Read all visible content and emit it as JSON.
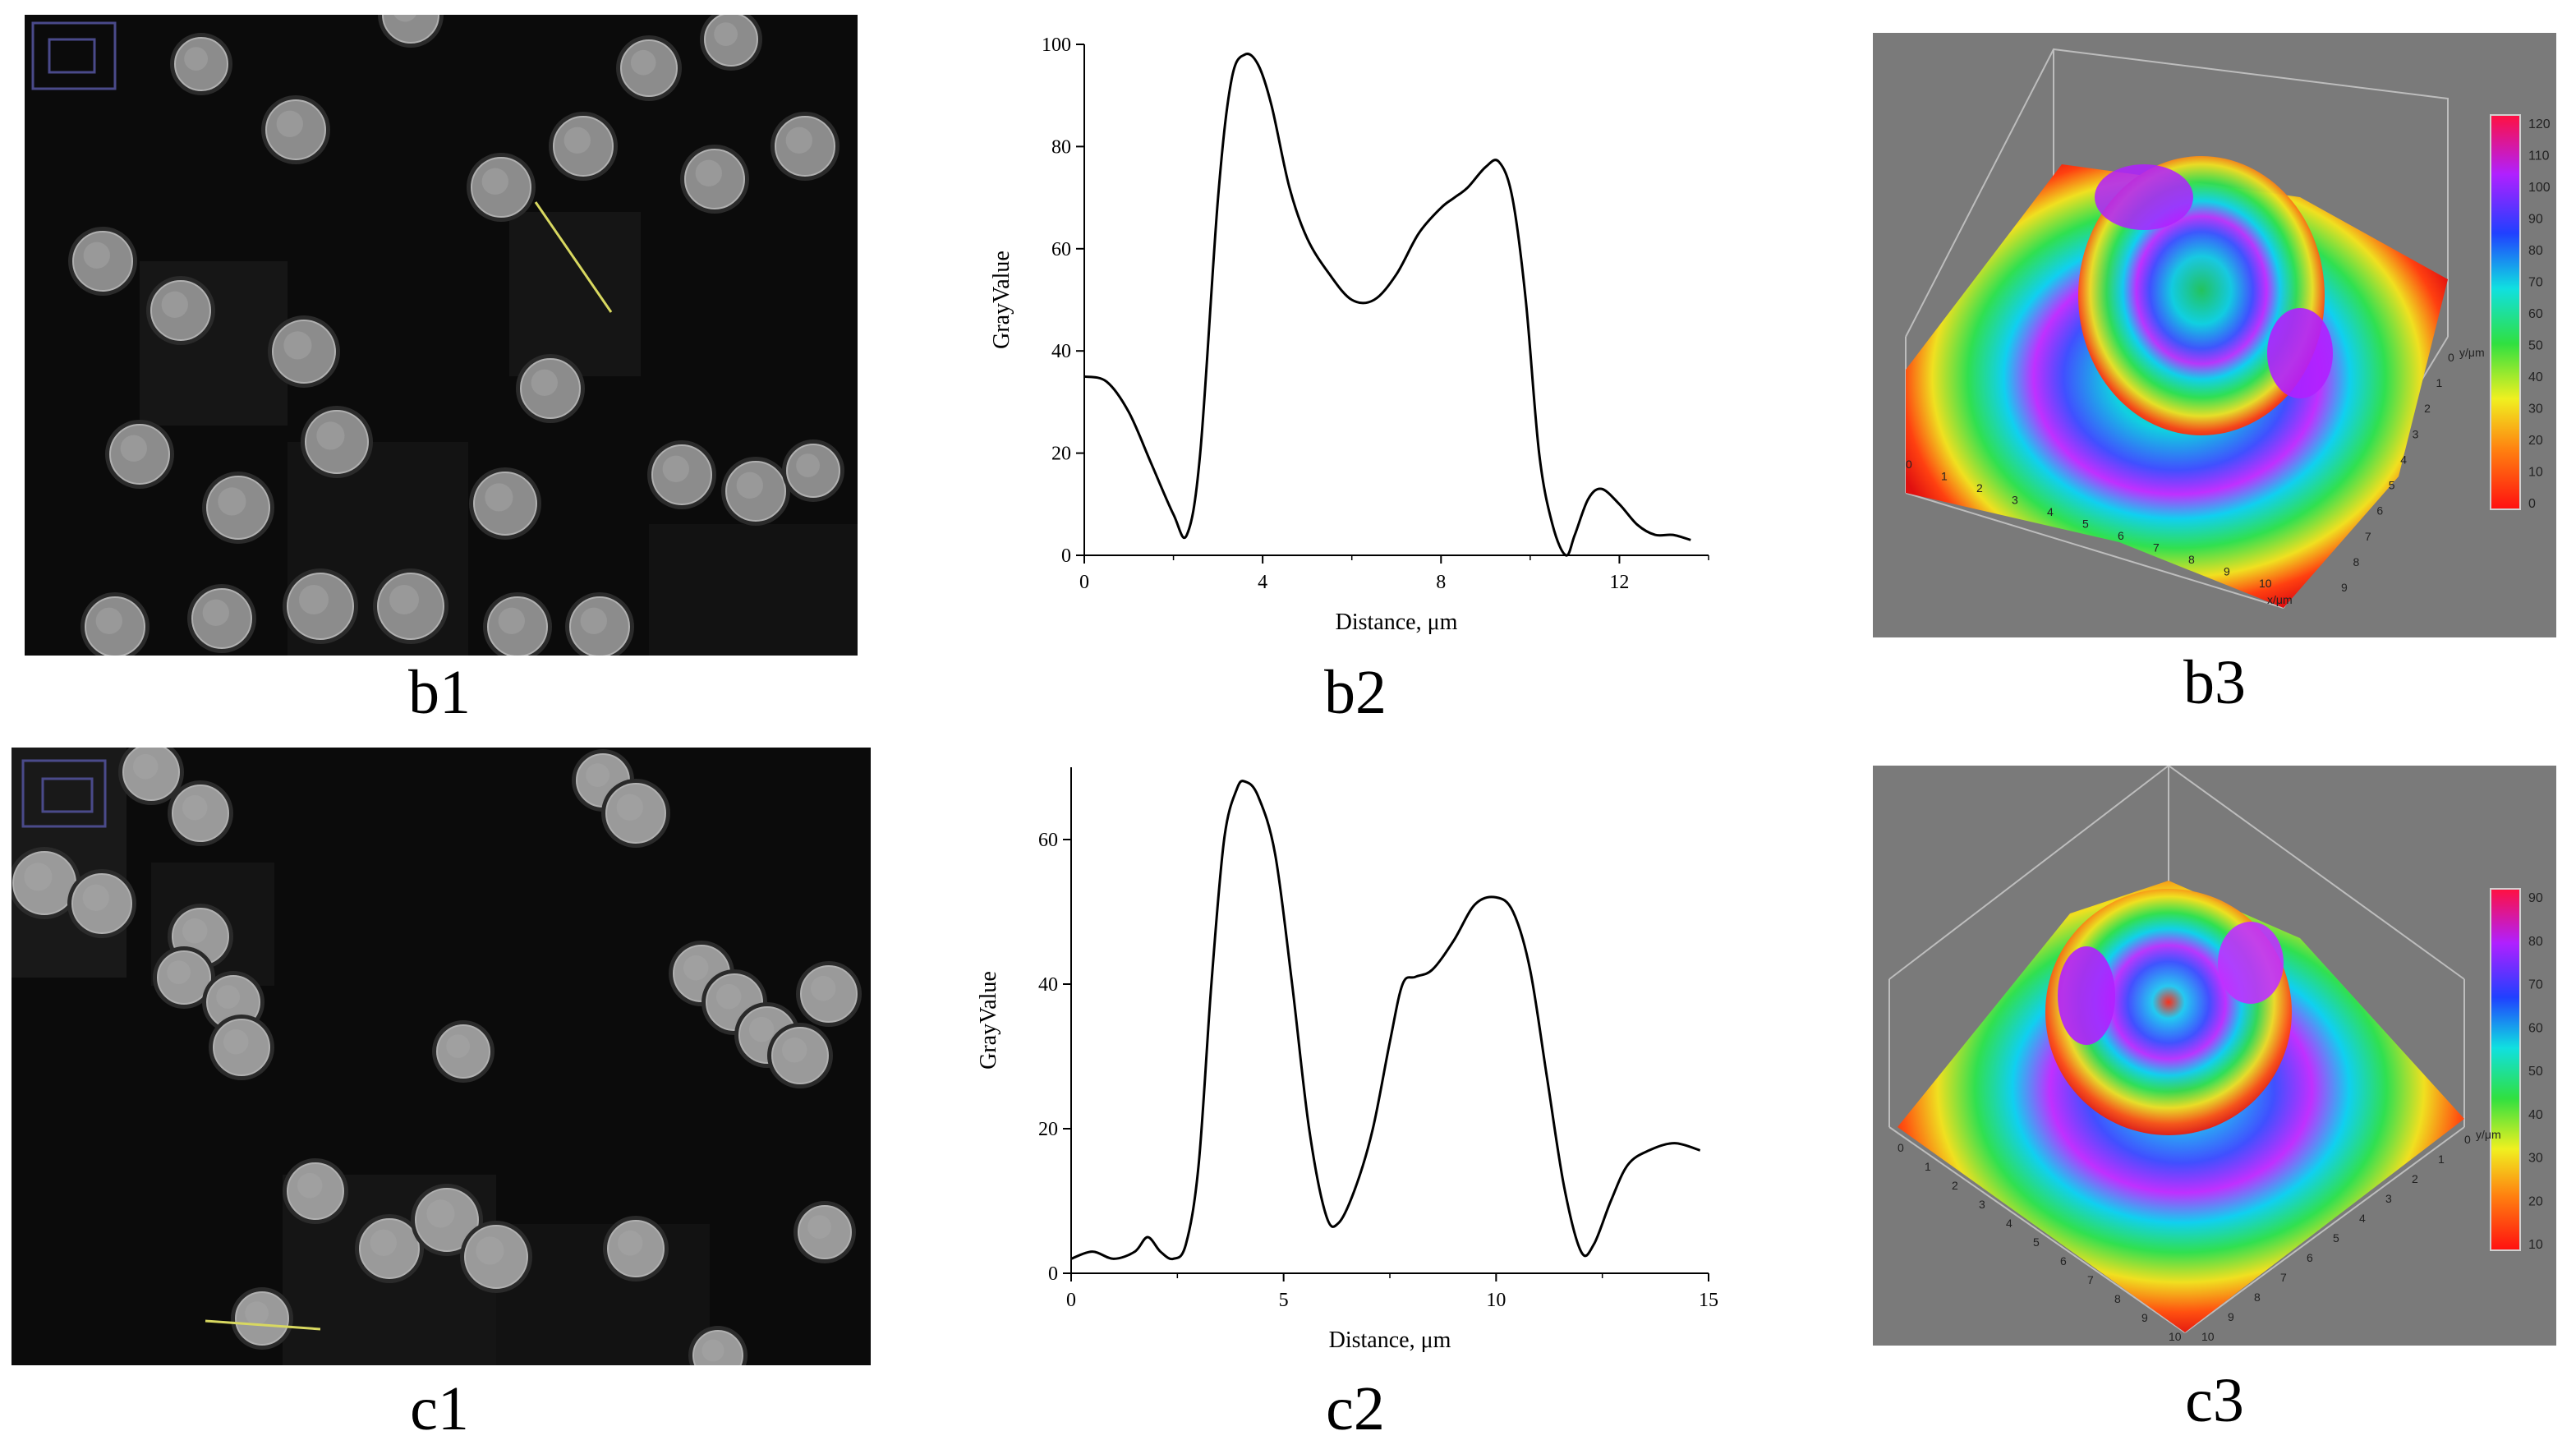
{
  "captions": {
    "b1": "b1",
    "b2": "b2",
    "b3": "b3",
    "c1": "c1",
    "c2": "c2",
    "c3": "c3"
  },
  "colors": {
    "micrograph_bg": "#0a0a0a",
    "cell": "#8c8c8c",
    "plot_bg": "#7a7a7a",
    "line_marker": "#d8d860"
  },
  "chart_data": [
    {
      "id": "b2",
      "type": "line",
      "title": "",
      "xlabel": "Distance, μm",
      "ylabel": "GrayValue",
      "xlim": [
        0,
        14
      ],
      "ylim": [
        0,
        100
      ],
      "xticks": [
        0,
        4,
        8,
        12
      ],
      "yticks": [
        0,
        20,
        40,
        60,
        80,
        100
      ],
      "x": [
        0,
        0.5,
        1.0,
        1.5,
        2.0,
        2.3,
        2.6,
        3.0,
        3.3,
        3.6,
        3.9,
        4.2,
        4.6,
        5.0,
        5.5,
        6.0,
        6.5,
        7.0,
        7.5,
        8.0,
        8.3,
        8.6,
        9.0,
        9.3,
        9.6,
        9.9,
        10.2,
        10.5,
        10.8,
        11.0,
        11.3,
        11.6,
        12.0,
        12.4,
        12.8,
        13.2,
        13.6
      ],
      "y": [
        35,
        34,
        28,
        18,
        8,
        4,
        20,
        70,
        93,
        98,
        96,
        88,
        72,
        62,
        55,
        50,
        50,
        55,
        63,
        68,
        70,
        72,
        76,
        77,
        70,
        50,
        20,
        6,
        0,
        4,
        11,
        13,
        10,
        6,
        4,
        4,
        3
      ]
    },
    {
      "id": "c2",
      "type": "line",
      "title": "",
      "xlabel": "Distance, μm",
      "ylabel": "GrayValue",
      "xlim": [
        0,
        15
      ],
      "ylim": [
        0,
        70
      ],
      "xticks": [
        0,
        5,
        10,
        15
      ],
      "yticks": [
        0,
        20,
        40,
        60
      ],
      "x": [
        0,
        0.5,
        1.0,
        1.5,
        1.8,
        2.1,
        2.4,
        2.7,
        3.0,
        3.3,
        3.6,
        3.9,
        4.1,
        4.4,
        4.8,
        5.2,
        5.6,
        6.0,
        6.3,
        6.7,
        7.1,
        7.5,
        7.8,
        8.1,
        8.5,
        9.0,
        9.5,
        10.0,
        10.4,
        10.8,
        11.2,
        11.6,
        12.0,
        12.3,
        12.7,
        13.1,
        13.6,
        14.2,
        14.8
      ],
      "y": [
        2,
        3,
        2,
        3,
        5,
        3,
        2,
        4,
        15,
        40,
        60,
        67,
        68,
        66,
        58,
        40,
        20,
        8,
        7,
        12,
        20,
        32,
        40,
        41,
        42,
        46,
        51,
        52,
        50,
        42,
        27,
        12,
        3,
        4,
        10,
        15,
        17,
        18,
        17
      ]
    },
    {
      "id": "b3",
      "type": "heatmap",
      "title": "",
      "colorbar_ticks": [
        "0",
        "10",
        "20",
        "30",
        "40",
        "50",
        "60",
        "70",
        "80",
        "90",
        "100",
        "110",
        "120"
      ],
      "xlabel": "x/μm",
      "ylabel": "y/μm",
      "x_ticks": [
        "0",
        "1",
        "2",
        "3",
        "4",
        "5",
        "6",
        "7",
        "8",
        "9",
        "10"
      ],
      "y_ticks": [
        "0",
        "1",
        "2",
        "3",
        "4",
        "5",
        "6",
        "7",
        "8",
        "9"
      ]
    },
    {
      "id": "c3",
      "type": "heatmap",
      "title": "",
      "colorbar_ticks": [
        "10",
        "20",
        "30",
        "40",
        "50",
        "60",
        "70",
        "80",
        "90"
      ],
      "xlabel": "x/μm",
      "ylabel": "y/μm",
      "x_ticks": [
        "0",
        "1",
        "2",
        "3",
        "4",
        "5",
        "6",
        "7",
        "8",
        "9",
        "10"
      ],
      "y_ticks": [
        "0",
        "1",
        "2",
        "3",
        "4",
        "5",
        "6",
        "7",
        "8",
        "9",
        "10"
      ]
    }
  ]
}
